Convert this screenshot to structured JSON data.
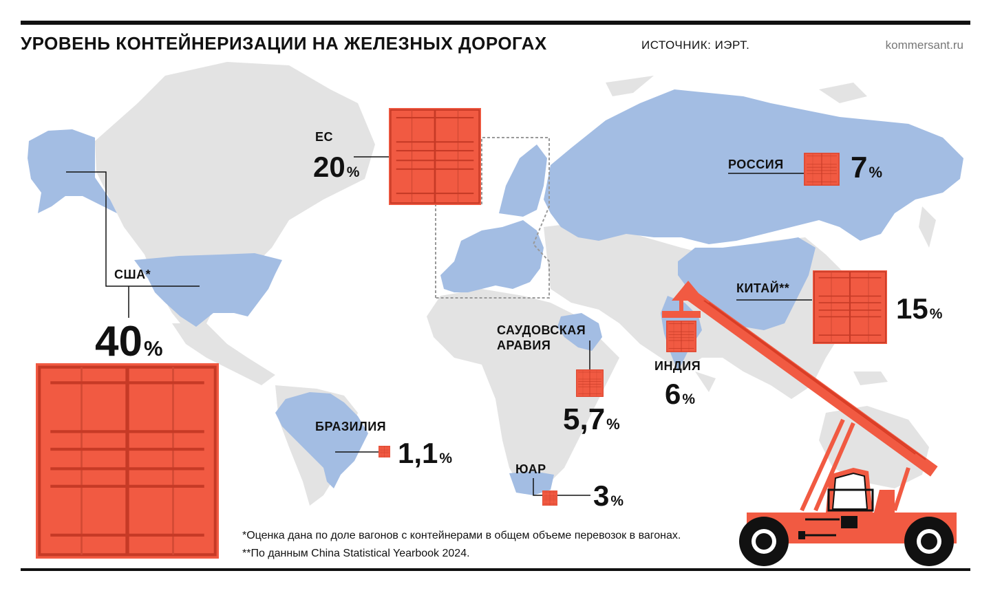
{
  "header": {
    "title": "УРОВЕНЬ КОНТЕЙНЕРИЗАЦИИ НА ЖЕЛЕЗНЫХ ДОРОГАХ",
    "source": "ИСТОЧНИК: ИЭРТ.",
    "brand": "kommersant.ru"
  },
  "colors": {
    "land": "#e3e3e3",
    "highlight": "#a3bde3",
    "container": "#f15a42",
    "text": "#111111"
  },
  "countries": [
    {
      "id": "usa",
      "name": "США*",
      "value": "40",
      "unit": "%"
    },
    {
      "id": "eu",
      "name": "ЕС",
      "value": "20",
      "unit": "%"
    },
    {
      "id": "russia",
      "name": "РОССИЯ",
      "value": "7",
      "unit": "%"
    },
    {
      "id": "china",
      "name": "КИТАЙ**",
      "value": "15",
      "unit": "%"
    },
    {
      "id": "saudi",
      "name": "САУДОВСКАЯ АРАВИЯ",
      "value": "5,7",
      "unit": "%"
    },
    {
      "id": "india",
      "name": "ИНДИЯ",
      "value": "6",
      "unit": "%"
    },
    {
      "id": "brazil",
      "name": "БРАЗИЛИЯ",
      "value": "1,1",
      "unit": "%"
    },
    {
      "id": "sa",
      "name": "ЮАР",
      "value": "3",
      "unit": "%"
    }
  ],
  "notes": [
    "*Оценка дана по доле вагонов с контейнерами в общем объеме перевозок в вагонах.",
    "**По данным China Statistical Yearbook 2024."
  ]
}
